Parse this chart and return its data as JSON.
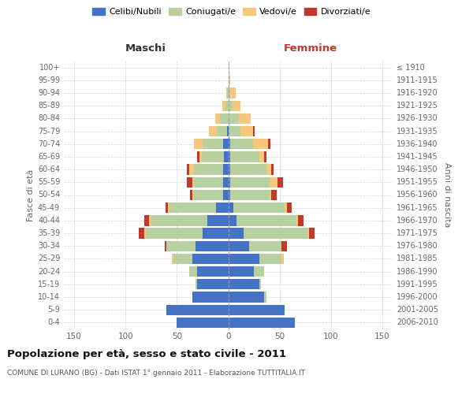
{
  "age_groups": [
    "0-4",
    "5-9",
    "10-14",
    "15-19",
    "20-24",
    "25-29",
    "30-34",
    "35-39",
    "40-44",
    "45-49",
    "50-54",
    "55-59",
    "60-64",
    "65-69",
    "70-74",
    "75-79",
    "80-84",
    "85-89",
    "90-94",
    "95-99",
    "100+"
  ],
  "birth_years": [
    "2006-2010",
    "2001-2005",
    "1996-2000",
    "1991-1995",
    "1986-1990",
    "1981-1985",
    "1976-1980",
    "1971-1975",
    "1966-1970",
    "1961-1965",
    "1956-1960",
    "1951-1955",
    "1946-1950",
    "1941-1945",
    "1936-1940",
    "1931-1935",
    "1926-1930",
    "1921-1925",
    "1916-1920",
    "1911-1915",
    "≤ 1910"
  ],
  "colors": {
    "celibi": "#4472c4",
    "coniugati": "#b8cfa0",
    "vedovi": "#f5c87e",
    "divorziati": "#c0392b"
  },
  "maschi_celibi": [
    50,
    60,
    35,
    30,
    30,
    35,
    32,
    25,
    20,
    12,
    5,
    5,
    5,
    4,
    5,
    1,
    0,
    0,
    0,
    0,
    0
  ],
  "maschi_coniugati": [
    0,
    0,
    0,
    2,
    8,
    18,
    28,
    55,
    55,
    45,
    28,
    28,
    28,
    22,
    20,
    10,
    8,
    3,
    1,
    0,
    0
  ],
  "maschi_vedovi": [
    0,
    0,
    0,
    0,
    0,
    2,
    0,
    2,
    2,
    2,
    2,
    2,
    5,
    2,
    8,
    8,
    5,
    3,
    1,
    0,
    0
  ],
  "maschi_divorziati": [
    0,
    0,
    0,
    0,
    0,
    0,
    2,
    5,
    5,
    2,
    2,
    5,
    2,
    2,
    0,
    0,
    0,
    0,
    0,
    0,
    0
  ],
  "femmine_celibi": [
    65,
    55,
    35,
    30,
    25,
    30,
    20,
    15,
    8,
    5,
    2,
    2,
    2,
    2,
    2,
    0,
    0,
    0,
    0,
    0,
    0
  ],
  "femmine_coniugati": [
    0,
    0,
    2,
    2,
    10,
    22,
    32,
    62,
    58,
    50,
    38,
    38,
    35,
    28,
    22,
    12,
    10,
    4,
    2,
    0,
    0
  ],
  "femmine_vedovi": [
    0,
    0,
    0,
    0,
    0,
    2,
    0,
    2,
    2,
    2,
    2,
    8,
    5,
    5,
    15,
    12,
    12,
    8,
    5,
    2,
    1
  ],
  "femmine_divorziati": [
    0,
    0,
    0,
    0,
    0,
    0,
    5,
    5,
    5,
    5,
    5,
    5,
    2,
    2,
    2,
    2,
    0,
    0,
    0,
    0,
    0
  ],
  "xlim": 160,
  "xticks": [
    -150,
    -100,
    -50,
    0,
    50,
    100,
    150
  ],
  "title": "Popolazione per età, sesso e stato civile - 2011",
  "subtitle": "COMUNE DI LURANO (BG) - Dati ISTAT 1° gennaio 2011 - Elaborazione TUTTITALIA.IT",
  "xlabel_left": "Maschi",
  "xlabel_right": "Femmine",
  "ylabel_left": "Fasce di età",
  "ylabel_right": "Anni di nascita",
  "legend_labels": [
    "Celibi/Nubili",
    "Coniugati/e",
    "Vedovi/e",
    "Divorziati/e"
  ],
  "background_color": "#ffffff",
  "grid_color": "#cccccc",
  "bar_height": 0.82
}
